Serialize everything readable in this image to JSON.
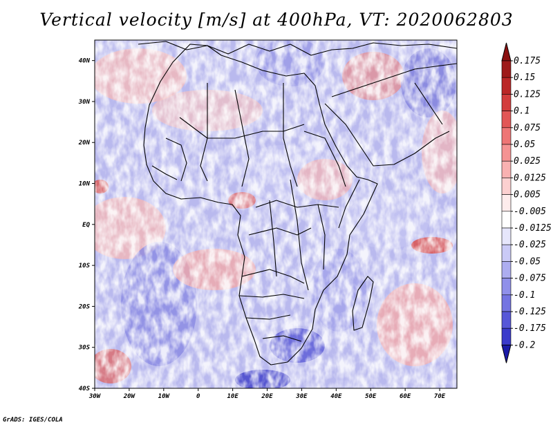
{
  "title": "Vertical velocity [m/s] at 400hPa, VT: 2020062803",
  "credit": "GrADS: IGES/COLA",
  "map": {
    "variable": "Vertical velocity",
    "units": "m/s",
    "level": "400hPa",
    "valid_time": "2020062803",
    "lon_range": [
      -30,
      75
    ],
    "lat_range": [
      -40,
      45
    ],
    "lon_ticks": [
      {
        "value": -30,
        "label": "30W"
      },
      {
        "value": -20,
        "label": "20W"
      },
      {
        "value": -10,
        "label": "10W"
      },
      {
        "value": 0,
        "label": "0"
      },
      {
        "value": 10,
        "label": "10E"
      },
      {
        "value": 20,
        "label": "20E"
      },
      {
        "value": 30,
        "label": "30E"
      },
      {
        "value": 40,
        "label": "40E"
      },
      {
        "value": 50,
        "label": "50E"
      },
      {
        "value": 60,
        "label": "60E"
      },
      {
        "value": 70,
        "label": "70E"
      }
    ],
    "lat_ticks": [
      {
        "value": 40,
        "label": "40N"
      },
      {
        "value": 30,
        "label": "30N"
      },
      {
        "value": 20,
        "label": "20N"
      },
      {
        "value": 10,
        "label": "10N"
      },
      {
        "value": 0,
        "label": "EQ"
      },
      {
        "value": -10,
        "label": "10S"
      },
      {
        "value": -20,
        "label": "20S"
      },
      {
        "value": -30,
        "label": "30S"
      },
      {
        "value": -40,
        "label": "40S"
      }
    ]
  },
  "colorbar": {
    "bins": [
      {
        "label": "0.175",
        "color": "#9e1a1a"
      },
      {
        "label": "0.15",
        "color": "#bb2727"
      },
      {
        "label": "0.125",
        "color": "#d33d3d"
      },
      {
        "label": "0.1",
        "color": "#e25656"
      },
      {
        "label": "0.075",
        "color": "#ee7575"
      },
      {
        "label": "0.05",
        "color": "#f59393"
      },
      {
        "label": "0.025",
        "color": "#f9b1b1"
      },
      {
        "label": "0.0125",
        "color": "#fcd0d0"
      },
      {
        "label": "0.005",
        "color": "#feecec"
      },
      {
        "label": "-0.005",
        "color": "#ffffff"
      },
      {
        "label": "-0.0125",
        "color": "#e6e6fb"
      },
      {
        "label": "-0.025",
        "color": "#cacaf6"
      },
      {
        "label": "-0.05",
        "color": "#adadf0"
      },
      {
        "label": "-0.075",
        "color": "#9090ea"
      },
      {
        "label": "-0.1",
        "color": "#7474e2"
      },
      {
        "label": "-0.125",
        "color": "#5757d8"
      },
      {
        "label": "-0.175",
        "color": "#3a3acb"
      },
      {
        "label": "-0.2",
        "color": "#2525b8"
      }
    ],
    "top_color": "#8b1010",
    "bottom_color": "#1a1aa8"
  }
}
